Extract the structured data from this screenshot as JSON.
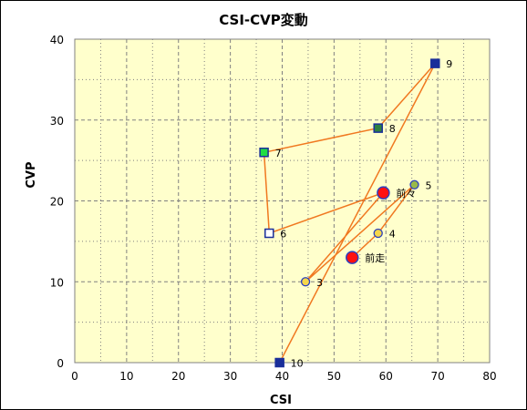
{
  "chart_data": {
    "type": "scatter",
    "title": "CSI-CVP変動",
    "xlabel": "CSI",
    "ylabel": "CVP",
    "xlim": [
      0,
      80
    ],
    "ylim": [
      0,
      40
    ],
    "xticks": [
      0,
      10,
      20,
      30,
      40,
      50,
      60,
      70,
      80
    ],
    "yticks": [
      0,
      10,
      20,
      30,
      40
    ],
    "grid": true,
    "legend": "none",
    "colors": {
      "plot_background": "#ffffcc",
      "grid": "#808080",
      "line": "#f07820",
      "square_fill_dark": "#1a2f9a",
      "square_fill_green": "#2e8040",
      "square_fill_bright_green": "#22dd44",
      "circle_fill_yellow": "#f5d64a",
      "circle_fill_olive": "#9aba4a",
      "circle_fill_red": "#ff1010"
    },
    "path_order": [
      "10",
      "9",
      "8",
      "7",
      "6",
      "前々",
      "3",
      "5",
      "4",
      "前走"
    ],
    "points": [
      {
        "label": "10",
        "x": 39.5,
        "y": 0,
        "marker": "square",
        "color": "#1a2f9a",
        "stroke": "#1a2f9a"
      },
      {
        "label": "9",
        "x": 69.5,
        "y": 37,
        "marker": "square",
        "color": "#1a2f9a",
        "stroke": "#1a2f9a"
      },
      {
        "label": "8",
        "x": 58.5,
        "y": 29,
        "marker": "square",
        "color": "#2e8040",
        "stroke": "#1a2f9a"
      },
      {
        "label": "7",
        "x": 36.5,
        "y": 26,
        "marker": "square",
        "color": "#22dd44",
        "stroke": "#1a2f9a"
      },
      {
        "label": "6",
        "x": 37.5,
        "y": 16,
        "marker": "square",
        "color": "#ffffff",
        "stroke": "#1a2f9a"
      },
      {
        "label": "前々",
        "x": 59.5,
        "y": 21,
        "marker": "circle-large",
        "color": "#ff1010",
        "stroke": "#2a3fbf"
      },
      {
        "label": "3",
        "x": 44.5,
        "y": 10,
        "marker": "circle",
        "color": "#f5d64a",
        "stroke": "#2a3fbf"
      },
      {
        "label": "5",
        "x": 65.5,
        "y": 22,
        "marker": "circle",
        "color": "#9aba4a",
        "stroke": "#2a3fbf"
      },
      {
        "label": "4",
        "x": 58.5,
        "y": 16,
        "marker": "circle",
        "color": "#f5d64a",
        "stroke": "#2a3fbf"
      },
      {
        "label": "前走",
        "x": 53.5,
        "y": 13,
        "marker": "circle-large",
        "color": "#ff1010",
        "stroke": "#2a3fbf"
      }
    ]
  }
}
